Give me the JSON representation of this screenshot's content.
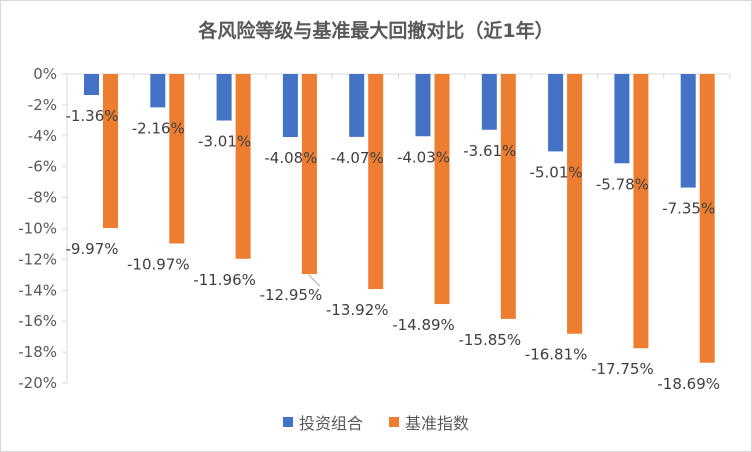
{
  "colors": {
    "portfolio": "#4472c4",
    "benchmark": "#ed7d31",
    "axis": "#d9d9d9",
    "text": "#595959"
  },
  "chart_data": {
    "type": "bar",
    "title": "各风险等级与基准最大回撤对比（近1年）",
    "xlabel": "",
    "ylabel": "",
    "ylim": [
      -20,
      0
    ],
    "yticks": [
      0,
      -2,
      -4,
      -6,
      -8,
      -10,
      -12,
      -14,
      -16,
      -18,
      -20
    ],
    "ytick_labels": [
      "0%",
      "-2%",
      "-4%",
      "-6%",
      "-8%",
      "-10%",
      "-12%",
      "-14%",
      "-16%",
      "-18%",
      "-20%"
    ],
    "categories": [
      "",
      "",
      "",
      "",
      "",
      "",
      "",
      "",
      "",
      ""
    ],
    "grid": false,
    "legend": "bottom",
    "series": [
      {
        "name": "投资组合",
        "values": [
          -1.36,
          -2.16,
          -3.01,
          -4.08,
          -4.07,
          -4.03,
          -3.61,
          -5.01,
          -5.78,
          -7.35
        ],
        "labels": [
          "-1.36%",
          "-2.16%",
          "-3.01%",
          "-4.08%",
          "-4.07%",
          "-4.03%",
          "-3.61%",
          "-5.01%",
          "-5.78%",
          "-7.35%"
        ]
      },
      {
        "name": "基准指数",
        "values": [
          -9.97,
          -10.97,
          -11.96,
          -12.95,
          -13.92,
          -14.89,
          -15.85,
          -16.81,
          -17.75,
          -18.69
        ],
        "labels": [
          "-9.97%",
          "-10.97%",
          "-11.96%",
          "-12.95%",
          "-13.92%",
          "-14.89%",
          "-15.85%",
          "-16.81%",
          "-17.75%",
          "-18.69%"
        ]
      }
    ]
  }
}
